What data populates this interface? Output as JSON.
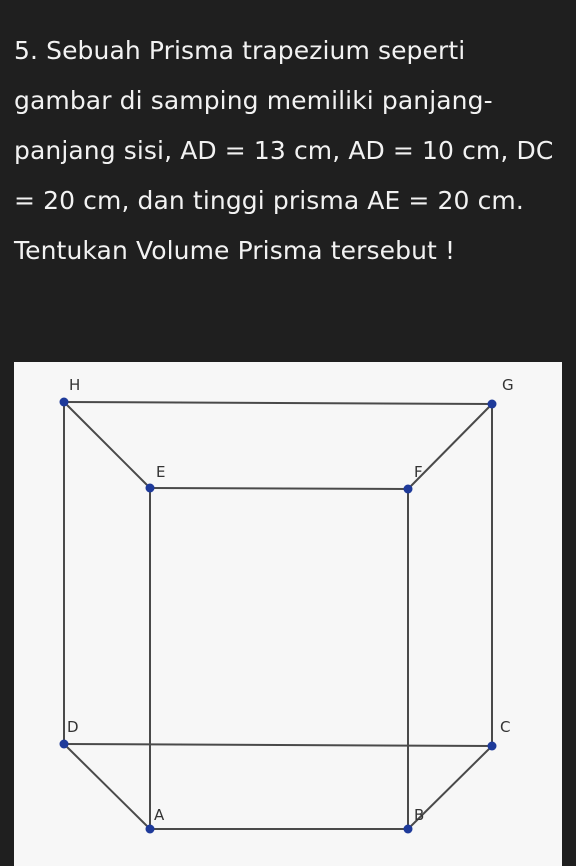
{
  "question": {
    "text": "5. Sebuah Prisma trapezium seperti gambar di samping memiliki panjang-panjang sisi, AD = 13 cm, AD = 10 cm, DC = 20 cm, dan tinggi prisma AE = 20 cm. Tentukan Volume Prisma tersebut !"
  },
  "figure": {
    "vertex_labels": {
      "H": "H",
      "G": "G",
      "E": "E",
      "F": "F",
      "D": "D",
      "C": "C",
      "A": "A",
      "B": "B"
    },
    "colors": {
      "panel_background": "#f7f7f7",
      "edge": "#4a4a4a",
      "vertex": "#1e3a9a",
      "page_background": "#1f1f1f",
      "text": "#f2f2f2"
    }
  }
}
